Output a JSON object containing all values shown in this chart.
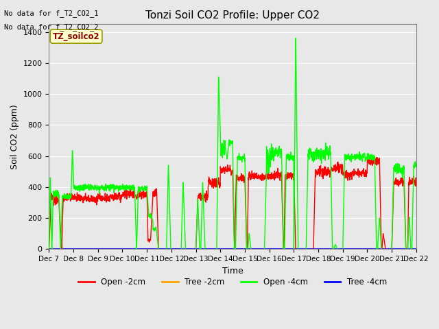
{
  "title": "Tonzi Soil CO2 Profile: Upper CO2",
  "ylabel": "Soil CO2 (ppm)",
  "xlabel": "Time",
  "no_data_text": [
    "No data for f_T2_CO2_1",
    "No data for f_T2_CO2_2"
  ],
  "legend_label": "TZ_soilco2",
  "ylim": [
    0,
    1450
  ],
  "xlim": [
    7,
    22
  ],
  "background_color": "#e8e8e8",
  "legend_entries": [
    "Open -2cm",
    "Tree -2cm",
    "Open -4cm",
    "Tree -4cm"
  ],
  "open2cm_color": "#ff0000",
  "tree2cm_color": "#ffa500",
  "open4cm_color": "#00ff00",
  "tree4cm_color": "#0000ff",
  "title_fontsize": 11,
  "axis_fontsize": 9,
  "tick_fontsize": 7.5
}
